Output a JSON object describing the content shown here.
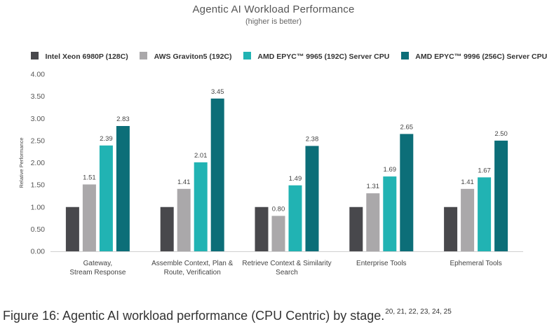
{
  "figure": {
    "caption": "Figure 16: Agentic AI workload performance (CPU Centric) by stage.",
    "caption_refs": "20, 21, 22, 23, 24, 25"
  },
  "chart_data": {
    "type": "bar",
    "title": "Agentic AI Workload Performance",
    "subtitle": "(higher is better)",
    "xlabel": "",
    "ylabel": "Relative Performance",
    "ylim": [
      0,
      4
    ],
    "yticks": [
      "0.00",
      "0.50",
      "1.00",
      "1.50",
      "2.00",
      "2.50",
      "3.00",
      "3.50",
      "4.00"
    ],
    "grid": false,
    "legend_position": "top-left",
    "categories": [
      [
        "Gateway,",
        "Stream Response"
      ],
      [
        "Assemble Context, Plan &",
        "Route, Verification"
      ],
      [
        "Retrieve Context & Similarity",
        "Search"
      ],
      [
        "Enterprise Tools"
      ],
      [
        "Ephemeral Tools"
      ]
    ],
    "series": [
      {
        "name": "Intel Xeon 6980P (128C)",
        "color": "#48484c",
        "values": [
          1.0,
          1.0,
          1.0,
          1.0,
          1.0
        ],
        "labels": [
          "",
          "",
          "",
          "",
          ""
        ]
      },
      {
        "name": "AWS Graviton5 (192C)",
        "color": "#aaa8aa",
        "values": [
          1.51,
          1.41,
          0.8,
          1.31,
          1.41
        ],
        "labels": [
          "1.51",
          "1.41",
          "0.80",
          "1.31",
          "1.41"
        ]
      },
      {
        "name": "AMD EPYC™ 9965 (192C) Server CPU",
        "color": "#21b3b3",
        "values": [
          2.39,
          2.01,
          1.49,
          1.69,
          1.67
        ],
        "labels": [
          "2.39",
          "2.01",
          "1.49",
          "1.69",
          "1.67"
        ]
      },
      {
        "name": "AMD EPYC™ 9996 (256C) Server CPU",
        "color": "#0c6e78",
        "values": [
          2.83,
          3.45,
          2.38,
          2.65,
          2.5
        ],
        "labels": [
          "2.83",
          "3.45",
          "2.38",
          "2.65",
          "2.50"
        ]
      }
    ]
  }
}
